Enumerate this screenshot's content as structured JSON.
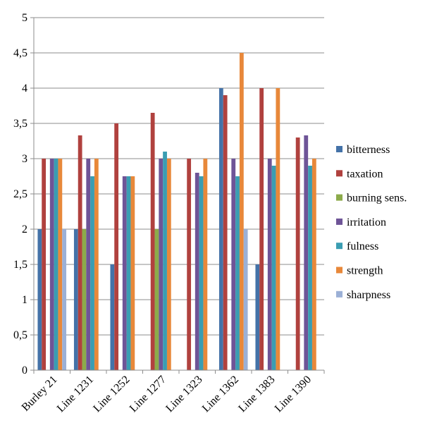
{
  "chart_data": {
    "type": "bar",
    "title": "",
    "xlabel": "",
    "ylabel": "",
    "ylim": [
      0,
      5
    ],
    "yticks": [
      "0",
      "0,5",
      "1",
      "1,5",
      "2",
      "2,5",
      "3",
      "3,5",
      "4",
      "4,5",
      "5"
    ],
    "grid": true,
    "legend_position": "right",
    "categories": [
      "Burley 21",
      "Line 1231",
      "Line 1252",
      "Line 1277",
      "Line 1323",
      "Line 1362",
      "Line 1383",
      "Line 1390"
    ],
    "series": [
      {
        "name": "bitterness",
        "color": "#4472A8",
        "values": [
          2.0,
          2.0,
          1.5,
          null,
          null,
          4.0,
          1.5,
          null
        ]
      },
      {
        "name": "taxation",
        "color": "#B0413E",
        "values": [
          3.0,
          3.33,
          3.5,
          3.65,
          3.0,
          3.9,
          4.0,
          3.3
        ]
      },
      {
        "name": "burning sens.",
        "color": "#8CAB4A",
        "values": [
          null,
          2.0,
          null,
          2.0,
          null,
          null,
          null,
          null
        ]
      },
      {
        "name": "irritation",
        "color": "#6E5497",
        "values": [
          3.0,
          3.0,
          2.75,
          3.0,
          2.8,
          3.0,
          3.0,
          3.33
        ]
      },
      {
        "name": "fulness",
        "color": "#3A9DB2",
        "values": [
          3.0,
          2.75,
          2.75,
          3.1,
          2.75,
          2.75,
          2.9,
          2.9
        ]
      },
      {
        "name": "strength",
        "color": "#E8883A",
        "values": [
          3.0,
          3.0,
          2.75,
          3.0,
          3.0,
          4.5,
          4.0,
          3.0
        ]
      },
      {
        "name": "sharpness",
        "color": "#9BB0D6",
        "values": [
          2.0,
          null,
          null,
          null,
          null,
          2.0,
          null,
          null
        ]
      }
    ]
  }
}
